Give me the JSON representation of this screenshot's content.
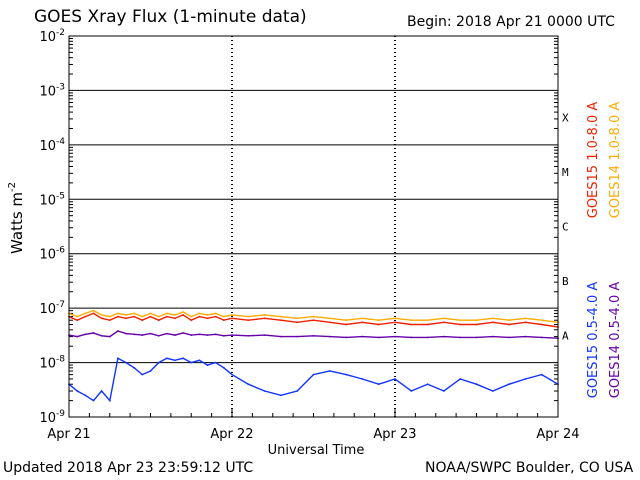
{
  "header": {
    "title": "GOES Xray Flux (1-minute data)",
    "begin": "Begin:  2018 Apr 21 0000 UTC"
  },
  "footer": {
    "updated": "Updated 2018 Apr 23 23:59:12 UTC",
    "credit": "NOAA/SWPC Boulder, CO USA"
  },
  "chart_data": {
    "type": "line",
    "title": "GOES Xray Flux (1-minute data)",
    "xlabel": "Universal Time",
    "ylabel": "Watts m",
    "ylabel_superscript": "-2",
    "yscale": "log",
    "ylim": [
      1e-09,
      0.01
    ],
    "xlim_days": [
      0,
      3
    ],
    "x_ticks": [
      {
        "day": 0,
        "label": "Apr 21"
      },
      {
        "day": 1,
        "label": "Apr 22"
      },
      {
        "day": 2,
        "label": "Apr 23"
      },
      {
        "day": 3,
        "label": "Apr 24"
      }
    ],
    "y_ticks": [
      {
        "exp": -2,
        "base": "10",
        "sup": "-2"
      },
      {
        "exp": -3,
        "base": "10",
        "sup": "-3"
      },
      {
        "exp": -4,
        "base": "10",
        "sup": "-4"
      },
      {
        "exp": -5,
        "base": "10",
        "sup": "-5"
      },
      {
        "exp": -6,
        "base": "10",
        "sup": "-6"
      },
      {
        "exp": -7,
        "base": "10",
        "sup": "-7"
      },
      {
        "exp": -8,
        "base": "10",
        "sup": "-8"
      },
      {
        "exp": -9,
        "base": "10",
        "sup": "-9"
      }
    ],
    "flare_classes": [
      {
        "label": "X",
        "exp": -4
      },
      {
        "label": "M",
        "exp": -5
      },
      {
        "label": "C",
        "exp": -6
      },
      {
        "label": "B",
        "exp": -7
      },
      {
        "label": "A",
        "exp": -8
      }
    ],
    "grid": true,
    "series": [
      {
        "name": "GOES15 1.0-8.0 A",
        "color": "#ee2200",
        "x": [
          0,
          0.05,
          0.1,
          0.15,
          0.2,
          0.25,
          0.3,
          0.35,
          0.4,
          0.45,
          0.5,
          0.55,
          0.6,
          0.65,
          0.7,
          0.75,
          0.8,
          0.85,
          0.9,
          0.95,
          1.0,
          1.1,
          1.2,
          1.3,
          1.4,
          1.5,
          1.6,
          1.7,
          1.8,
          1.9,
          2.0,
          2.1,
          2.2,
          2.3,
          2.4,
          2.5,
          2.6,
          2.7,
          2.8,
          2.9,
          3.0
        ],
        "y": [
          7e-08,
          6e-08,
          7e-08,
          8e-08,
          6.5e-08,
          6e-08,
          7e-08,
          6.5e-08,
          7e-08,
          6e-08,
          7e-08,
          6e-08,
          7e-08,
          6.5e-08,
          7.5e-08,
          6e-08,
          7e-08,
          6.5e-08,
          7e-08,
          6e-08,
          6.5e-08,
          6e-08,
          6.5e-08,
          6e-08,
          5.5e-08,
          6e-08,
          5.5e-08,
          5e-08,
          5.5e-08,
          5e-08,
          5.5e-08,
          5e-08,
          5e-08,
          5.5e-08,
          5e-08,
          5e-08,
          5.5e-08,
          5e-08,
          5.5e-08,
          5e-08,
          4.5e-08
        ]
      },
      {
        "name": "GOES14 1.0-8.0 A",
        "color": "#ffaa00",
        "x": [
          0,
          0.05,
          0.1,
          0.15,
          0.2,
          0.25,
          0.3,
          0.35,
          0.4,
          0.45,
          0.5,
          0.55,
          0.6,
          0.65,
          0.7,
          0.75,
          0.8,
          0.85,
          0.9,
          0.95,
          1.0,
          1.1,
          1.2,
          1.3,
          1.4,
          1.5,
          1.6,
          1.7,
          1.8,
          1.9,
          2.0,
          2.1,
          2.2,
          2.3,
          2.4,
          2.5,
          2.6,
          2.7,
          2.8,
          2.9,
          3.0
        ],
        "y": [
          8e-08,
          7e-08,
          8e-08,
          9e-08,
          7.5e-08,
          7e-08,
          8e-08,
          7.5e-08,
          8e-08,
          7e-08,
          8e-08,
          7e-08,
          8e-08,
          7.5e-08,
          8.5e-08,
          7e-08,
          8e-08,
          7.5e-08,
          8e-08,
          7e-08,
          7.5e-08,
          7e-08,
          7.5e-08,
          7e-08,
          6.5e-08,
          7e-08,
          6.5e-08,
          6e-08,
          6.5e-08,
          6e-08,
          6.5e-08,
          6e-08,
          6e-08,
          6.5e-08,
          6e-08,
          6e-08,
          6.5e-08,
          6e-08,
          6.5e-08,
          6e-08,
          5.5e-08
        ]
      },
      {
        "name": "GOES15 0.5-4.0 A",
        "color": "#1133ff",
        "x": [
          0,
          0.05,
          0.1,
          0.15,
          0.2,
          0.25,
          0.3,
          0.35,
          0.4,
          0.45,
          0.5,
          0.55,
          0.6,
          0.65,
          0.7,
          0.75,
          0.8,
          0.85,
          0.9,
          0.95,
          1.0,
          1.1,
          1.2,
          1.3,
          1.4,
          1.5,
          1.6,
          1.7,
          1.8,
          1.9,
          2.0,
          2.1,
          2.2,
          2.3,
          2.4,
          2.5,
          2.6,
          2.7,
          2.8,
          2.9,
          3.0
        ],
        "y": [
          4e-09,
          3e-09,
          2.5e-09,
          2e-09,
          3e-09,
          2e-09,
          1.2e-08,
          1e-08,
          8e-09,
          6e-09,
          7e-09,
          1e-08,
          1.2e-08,
          1.1e-08,
          1.2e-08,
          1e-08,
          1.1e-08,
          9e-09,
          1e-08,
          8e-09,
          6e-09,
          4e-09,
          3e-09,
          2.5e-09,
          3e-09,
          6e-09,
          7e-09,
          6e-09,
          5e-09,
          4e-09,
          5e-09,
          3e-09,
          4e-09,
          3e-09,
          5e-09,
          4e-09,
          3e-09,
          4e-09,
          5e-09,
          6e-09,
          4e-09
        ]
      },
      {
        "name": "GOES14 0.5-4.0 A",
        "color": "#6600aa",
        "x": [
          0,
          0.05,
          0.1,
          0.15,
          0.2,
          0.25,
          0.3,
          0.35,
          0.4,
          0.45,
          0.5,
          0.55,
          0.6,
          0.65,
          0.7,
          0.75,
          0.8,
          0.85,
          0.9,
          0.95,
          1.0,
          1.1,
          1.2,
          1.3,
          1.4,
          1.5,
          1.6,
          1.7,
          1.8,
          1.9,
          2.0,
          2.1,
          2.2,
          2.3,
          2.4,
          2.5,
          2.6,
          2.7,
          2.8,
          2.9,
          3.0
        ],
        "y": [
          3.2e-08,
          3e-08,
          3.3e-08,
          3.5e-08,
          3.1e-08,
          3e-08,
          3.8e-08,
          3.4e-08,
          3.3e-08,
          3.2e-08,
          3.4e-08,
          3.1e-08,
          3.4e-08,
          3.2e-08,
          3.5e-08,
          3.2e-08,
          3.3e-08,
          3.2e-08,
          3.3e-08,
          3.1e-08,
          3.2e-08,
          3.1e-08,
          3.2e-08,
          3e-08,
          3e-08,
          3.1e-08,
          3e-08,
          2.9e-08,
          3e-08,
          2.9e-08,
          3e-08,
          2.9e-08,
          2.9e-08,
          3e-08,
          2.9e-08,
          2.9e-08,
          3e-08,
          2.9e-08,
          3e-08,
          2.9e-08,
          2.8e-08
        ]
      }
    ]
  }
}
